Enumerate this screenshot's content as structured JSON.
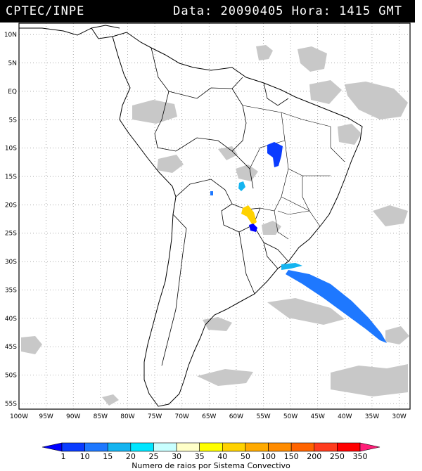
{
  "header": {
    "source": "CPTEC/INPE",
    "data_label": "Data:",
    "data_value": "20090405",
    "hora_label": "Hora:",
    "hora_value": "1415 GMT"
  },
  "map": {
    "lat_labels": [
      "10N",
      "5N",
      "EQ",
      "5S",
      "10S",
      "15S",
      "20S",
      "25S",
      "30S",
      "35S",
      "40S",
      "45S",
      "50S",
      "55S"
    ],
    "lon_labels": [
      "100W",
      "95W",
      "90W",
      "85W",
      "80W",
      "75W",
      "70W",
      "65W",
      "60W",
      "55W",
      "50W",
      "45W",
      "40W",
      "35W",
      "30W"
    ],
    "lat_range": [
      -56,
      12
    ],
    "lon_range": [
      -100,
      -28
    ],
    "grid": "dotted"
  },
  "legend": {
    "ticks": [
      "1",
      "10",
      "15",
      "20",
      "25",
      "30",
      "35",
      "40",
      "50",
      "100",
      "150",
      "200",
      "250",
      "350"
    ],
    "colors": [
      "#0000ff",
      "#0a3cff",
      "#1e78ff",
      "#14b4f0",
      "#00e6ff",
      "#c8ffff",
      "#ffffc8",
      "#ffff00",
      "#ffd200",
      "#ffaa00",
      "#ff8c00",
      "#ff6400",
      "#ff3c1e",
      "#ff0000",
      "#ff1e78"
    ],
    "title": "Numero de raios por Sistema Convectivo"
  },
  "chart_data": {
    "type": "map",
    "title": "CPTEC/INPE Data: 20090405 Hora: 1415 GMT",
    "features": [
      {
        "name": "convective-system",
        "lon": -54.5,
        "lat": -10.5,
        "color": "#0a3cff"
      },
      {
        "name": "convective-system",
        "lon": -57.5,
        "lat": -16.0,
        "color": "#14b4f0"
      },
      {
        "name": "convective-system",
        "lon": -56.0,
        "lat": -21.5,
        "color": "#ffd200"
      },
      {
        "name": "convective-system",
        "lon": -55.7,
        "lat": -23.8,
        "color": "#0000ff"
      },
      {
        "name": "convective-system",
        "lon": -65.0,
        "lat": -18.5,
        "color": "#1e78ff"
      },
      {
        "name": "convective-system",
        "lon": -39.0,
        "lat": -37.5,
        "color": "#1e78ff"
      }
    ]
  }
}
